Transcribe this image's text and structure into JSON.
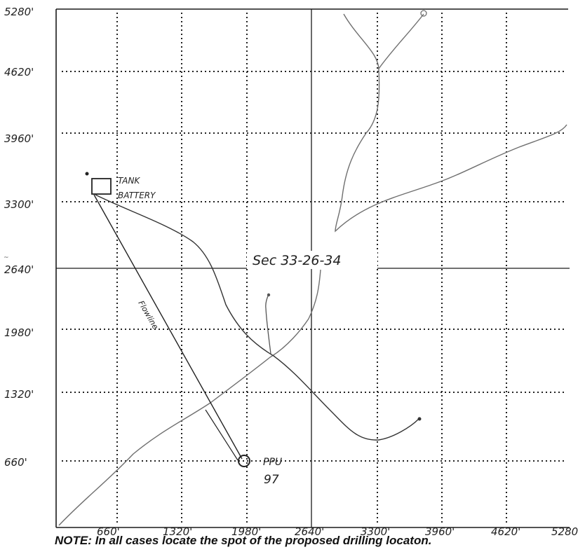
{
  "section_label": "Sec 33-26-34",
  "y_axis_labels": [
    "5280'",
    "4620'",
    "3960'",
    "3300'",
    "2640'",
    "1980'",
    "1320'",
    "660'"
  ],
  "x_axis_labels": [
    "660'",
    "1320'",
    "1980'",
    "2640'",
    "3300'",
    "3960'",
    "4620'",
    "5280"
  ],
  "tank_battery": {
    "line1": "TANK",
    "line2": "BATTERY"
  },
  "well": {
    "line1": "PPU",
    "line2": "97"
  },
  "flowline_label": "Flowline",
  "note": "NOTE: In all cases locate the spot of the proposed drilling locaton.",
  "colors": {
    "ink": "#222222",
    "road": "#6f6f6f",
    "border": "#1a1a1a"
  }
}
